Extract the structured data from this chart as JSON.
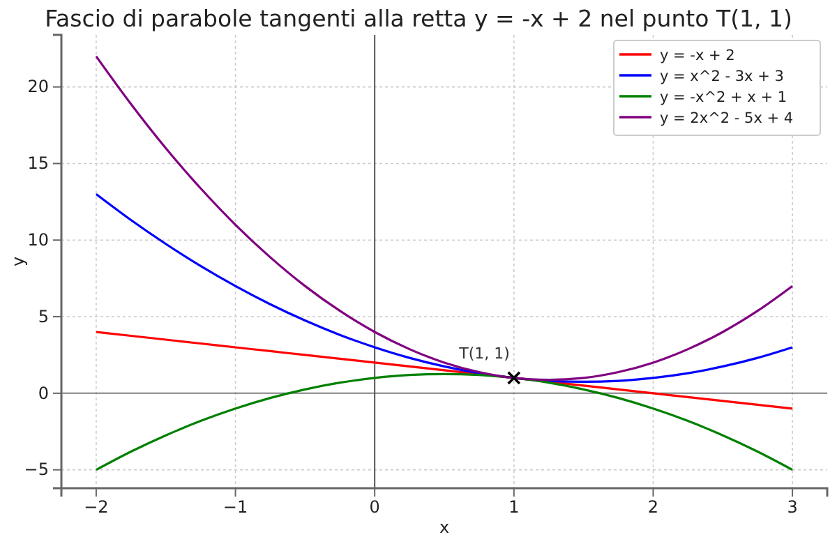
{
  "chart_data": {
    "type": "line",
    "title": "Fascio di parabole tangenti alla retta y = -x + 2 nel punto T(1, 1)",
    "xlabel": "x",
    "ylabel": "y",
    "x": [
      -2,
      -1.75,
      -1.5,
      -1.25,
      -1,
      -0.75,
      -0.5,
      -0.25,
      0,
      0.25,
      0.5,
      0.75,
      1,
      1.25,
      1.5,
      1.75,
      2,
      2.25,
      2.5,
      2.75,
      3
    ],
    "series": [
      {
        "name": "y = -x + 2",
        "color": "#ff0000",
        "values": [
          4,
          3.75,
          3.5,
          3.25,
          3,
          2.75,
          2.5,
          2.25,
          2,
          1.75,
          1.5,
          1.25,
          1,
          0.75,
          0.5,
          0.25,
          0,
          -0.25,
          -0.5,
          -0.75,
          -1
        ]
      },
      {
        "name": "y = x^2 - 3x + 3",
        "color": "#0000ff",
        "values": [
          13,
          11.31,
          9.75,
          8.31,
          7,
          5.81,
          4.75,
          3.81,
          3,
          2.31,
          1.75,
          1.31,
          1,
          0.81,
          0.75,
          0.81,
          1,
          1.31,
          1.75,
          2.31,
          3
        ]
      },
      {
        "name": "y = -x^2 + x + 1",
        "color": "#008000",
        "values": [
          -5,
          -3.81,
          -2.75,
          -1.81,
          -1,
          -0.31,
          0.25,
          0.69,
          1,
          1.19,
          1.25,
          1.19,
          1,
          0.69,
          0.25,
          -0.31,
          -1,
          -1.81,
          -2.75,
          -3.81,
          -5
        ]
      },
      {
        "name": "y = 2x^2 - 5x + 4",
        "color": "#800080",
        "values": [
          22,
          18.88,
          16,
          13.38,
          11,
          8.88,
          7,
          5.38,
          4,
          2.88,
          2,
          1.38,
          1,
          0.88,
          1,
          1.38,
          2,
          2.88,
          4,
          5.38,
          7
        ]
      },
      {
        "type": "scatter",
        "marker": "cross",
        "color": "#000000",
        "x": [
          1
        ],
        "values": [
          1
        ]
      }
    ],
    "annotations": [
      {
        "text": "T(1, 1)",
        "x": 1,
        "y": 1
      }
    ],
    "ref_lines": [
      {
        "axis": "y",
        "value": 0,
        "color": "#808080"
      },
      {
        "axis": "x",
        "value": 0,
        "color": "#555555"
      }
    ],
    "xlim": [
      -2.25,
      3.25
    ],
    "ylim": [
      -6.2,
      23.4
    ],
    "xticks": [
      -2,
      -1,
      0,
      1,
      2,
      3
    ],
    "yticks": [
      -5,
      0,
      5,
      10,
      15,
      20
    ],
    "grid": true,
    "legend": "top right",
    "line_style": "solid",
    "marker": "none"
  }
}
